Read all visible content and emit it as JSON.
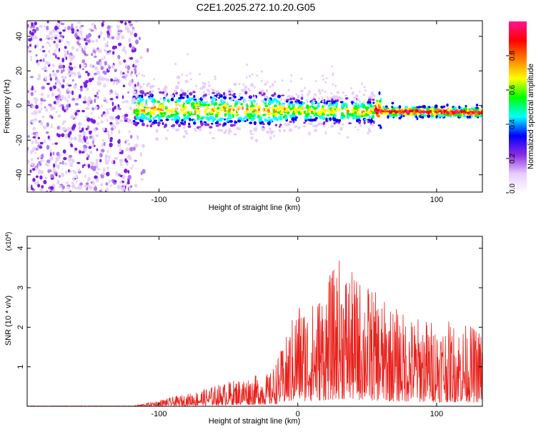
{
  "title": "C2E1.2025.272.10.20.G05",
  "chart_data": [
    {
      "type": "heatmap",
      "name": "spectrogram",
      "xlabel": "Height of straight line (km)",
      "ylabel": "Frequency (Hz)",
      "xlim": [
        -195,
        133
      ],
      "ylim": [
        -50,
        49
      ],
      "xticks": [
        -100,
        0,
        100
      ],
      "yticks": [
        -40,
        -20,
        0,
        20,
        40
      ],
      "ytick_labels": [
        "-40",
        "-20",
        "0",
        "20",
        "40"
      ],
      "colorbar": {
        "label": "Normalized spectral amplitude",
        "range": [
          0,
          1
        ],
        "ticks": [
          0.0,
          0.2,
          0.4,
          0.6,
          0.8
        ],
        "tick_labels": [
          "0.0",
          "0.2",
          "0.4",
          "0.6",
          "0.8"
        ],
        "colors": [
          "#ffffff",
          "#e8ccff",
          "#8a2be2",
          "#0000ff",
          "#00ffff",
          "#00ff00",
          "#ffff00",
          "#ff8000",
          "#ff0000",
          "#ff1493"
        ]
      },
      "features": {
        "noise_region_x": [
          -195,
          -115
        ],
        "signal_band_center_hz_start": -2,
        "signal_band_center_hz_end": -4
      }
    },
    {
      "type": "line",
      "name": "snr",
      "xlabel": "Height of straight line (km)",
      "ylabel": "SNR (10 * v/v)",
      "multiplier_label": "(x10",
      "multiplier_exp": "4",
      "multiplier_close": ")",
      "xlim": [
        -195,
        133
      ],
      "ylim": [
        0,
        4.3
      ],
      "xticks": [
        -100,
        0,
        100
      ],
      "yticks": [
        1,
        2,
        3,
        4
      ],
      "line_color": "#e8201a",
      "envelope_km": [
        -195,
        -120,
        -100,
        -80,
        -60,
        -40,
        -20,
        -10,
        0,
        10,
        20,
        30,
        40,
        50,
        60,
        80,
        100,
        120,
        133
      ],
      "envelope_snr": [
        0.0,
        0.0,
        0.15,
        0.3,
        0.5,
        0.7,
        0.8,
        1.5,
        2.6,
        2.5,
        3.0,
        3.6,
        3.2,
        3.0,
        2.6,
        2.2,
        2.1,
        2.0,
        1.9
      ]
    }
  ]
}
